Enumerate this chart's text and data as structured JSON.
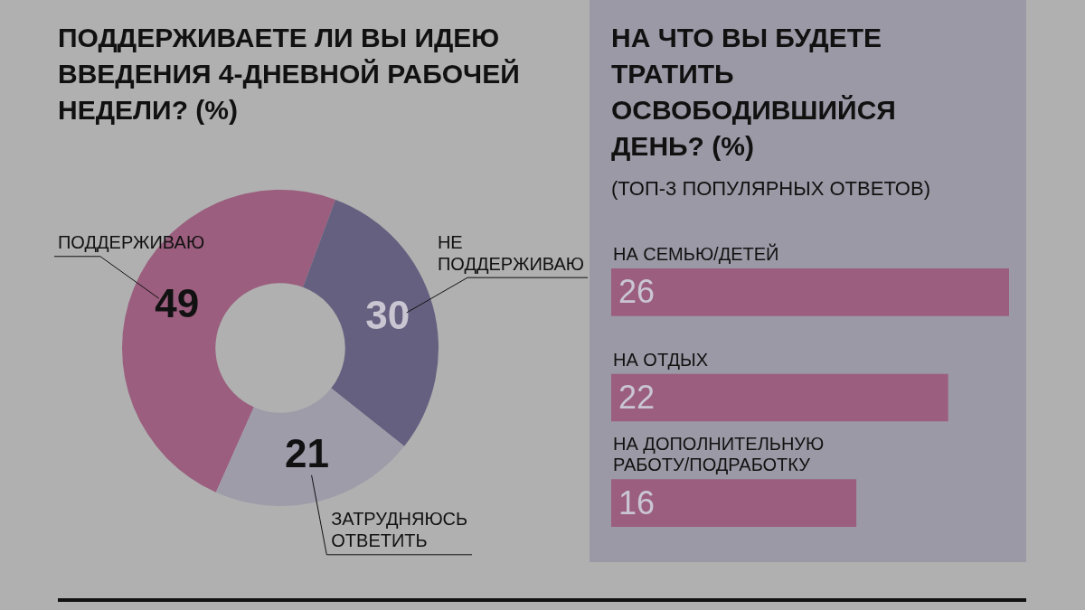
{
  "chart_data": [
    {
      "type": "donut",
      "title": "ПОДДЕРЖИВАЕТЕ ЛИ ВЫ ИДЕЮ ВВЕДЕНИЯ 4-ДНЕВНОЙ РАБОЧЕЙ НЕДЕЛИ? (%)",
      "categories": [
        "ПОДДЕРЖИВАЮ",
        "НЕ ПОДДЕРЖИВАЮ",
        "ЗАТРУДНЯЮСЬ ОТВЕТИТЬ"
      ],
      "values": [
        49,
        30,
        21
      ],
      "colors": [
        "#9b5e7e",
        "#666080",
        "#9f9caa"
      ],
      "data_labels": true,
      "legend": false
    },
    {
      "type": "bar",
      "orientation": "horizontal",
      "title": "НА ЧТО ВЫ БУДЕТЕ ТРАТИТЬ ОСВОБОДИВШИЙСЯ ДЕНЬ? (%)",
      "subtitle": "(ТОП-3 ПОПУЛЯРНЫХ ОТВЕТОВ)",
      "categories": [
        "НА СЕМЬЮ/ДЕТЕЙ",
        "НА ОТДЫХ",
        "НА ДОПОЛНИТЕЛЬНУЮ РАБОТУ/ПОДРАБОТКУ"
      ],
      "values": [
        26,
        22,
        16
      ],
      "color": "#9b5e7e",
      "xlim": [
        0,
        26
      ],
      "data_labels": true,
      "legend": false,
      "tick_labels": false
    }
  ]
}
